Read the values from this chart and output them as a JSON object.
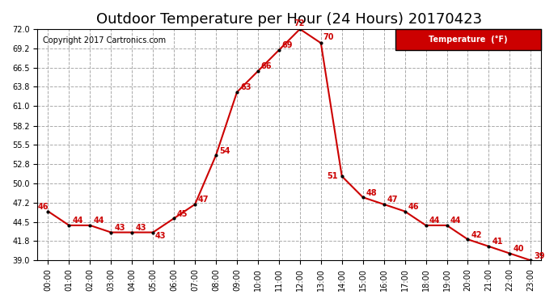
{
  "title": "Outdoor Temperature per Hour (24 Hours) 20170423",
  "copyright": "Copyright 2017 Cartronics.com",
  "legend_label": "Temperature  (°F)",
  "hours": [
    "00:00",
    "01:00",
    "02:00",
    "03:00",
    "04:00",
    "05:00",
    "06:00",
    "07:00",
    "08:00",
    "09:00",
    "10:00",
    "11:00",
    "12:00",
    "13:00",
    "14:00",
    "15:00",
    "16:00",
    "17:00",
    "18:00",
    "19:00",
    "20:00",
    "21:00",
    "22:00",
    "23:00"
  ],
  "temperatures": [
    46,
    44,
    44,
    43,
    43,
    43,
    45,
    47,
    54,
    63,
    66,
    69,
    72,
    70,
    51,
    48,
    47,
    46,
    44,
    44,
    42,
    41,
    40,
    39
  ],
  "last_point_temp": 39,
  "line_color": "#cc0000",
  "marker_color": "#000000",
  "label_color": "#cc0000",
  "background_color": "#ffffff",
  "title_color": "#000000",
  "copyright_color": "#000000",
  "legend_bg": "#cc0000",
  "legend_text_color": "#ffffff",
  "ylim_min": 39.0,
  "ylim_max": 72.0,
  "yticks": [
    39.0,
    41.8,
    44.5,
    47.2,
    50.0,
    52.8,
    55.5,
    58.2,
    61.0,
    63.8,
    66.5,
    69.2,
    72.0
  ],
  "grid_color": "#aaaaaa",
  "grid_style": "--",
  "title_fontsize": 13,
  "label_fontsize": 7,
  "tick_fontsize": 7,
  "copyright_fontsize": 7
}
